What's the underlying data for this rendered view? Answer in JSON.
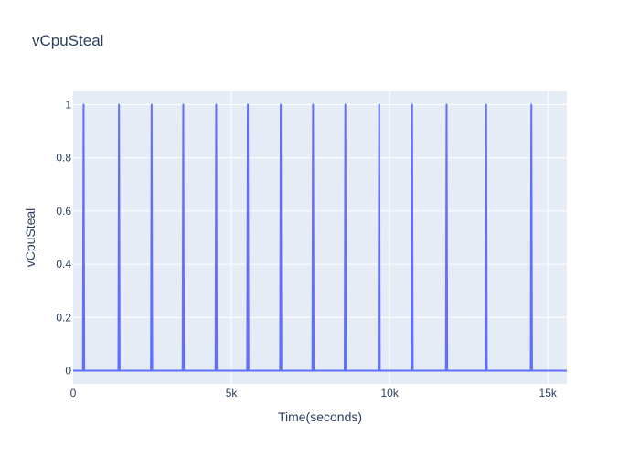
{
  "chart_data": {
    "type": "line",
    "title": "vCpuSteal",
    "xlabel": "Time(seconds)",
    "ylabel": "vCpuSteal",
    "xlim": [
      0,
      15600
    ],
    "ylim": [
      -0.05,
      1.05
    ],
    "x_ticks": [
      0,
      5000,
      10000,
      15000
    ],
    "x_tick_labels": [
      "0",
      "5k",
      "10k",
      "15k"
    ],
    "y_ticks": [
      0,
      0.2,
      0.4,
      0.6,
      0.8,
      1
    ],
    "y_tick_labels": [
      "0",
      "0.2",
      "0.4",
      "0.6",
      "0.8",
      "1"
    ],
    "grid": true,
    "legend": "none",
    "colors": {
      "line": "#636efa",
      "plot_bg": "#e5ecf6",
      "grid": "#ffffff",
      "text": "#2a3f5f"
    },
    "series": [
      {
        "spikes_at_x": [
          330,
          1450,
          2480,
          3480,
          4520,
          5520,
          6560,
          7580,
          8600,
          9670,
          10710,
          11800,
          13050,
          14480
        ],
        "baseline": 0,
        "peak": 1
      }
    ]
  }
}
